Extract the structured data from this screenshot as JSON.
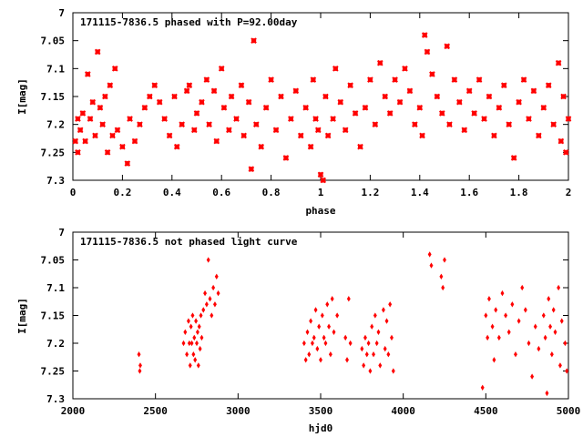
{
  "chart_data": [
    {
      "type": "scatter",
      "title": "171115-7836.5 phased with P=92.00day",
      "xlabel": "phase",
      "ylabel": "I[mag]",
      "xlim": [
        0,
        2
      ],
      "ylim": [
        7.3,
        7
      ],
      "y_inverted": true,
      "xticks": [
        "0",
        "0.2",
        "0.4",
        "0.6",
        "0.8",
        "1",
        "1.2",
        "1.4",
        "1.6",
        "1.8",
        "2"
      ],
      "xtick_values": [
        0,
        0.2,
        0.4,
        0.6,
        0.8,
        1.0,
        1.2,
        1.4,
        1.6,
        1.8,
        2.0
      ],
      "yticks": [
        "7",
        "7.05",
        "7.1",
        "7.15",
        "7.2",
        "7.25",
        "7.3"
      ],
      "ytick_values": [
        7,
        7.05,
        7.1,
        7.15,
        7.2,
        7.25,
        7.3
      ],
      "marker_color": "#ff0000",
      "series": [
        {
          "points": [
            [
              0.01,
              7.23
            ],
            [
              0.02,
              7.19
            ],
            [
              0.02,
              7.25
            ],
            [
              0.03,
              7.21
            ],
            [
              0.04,
              7.18
            ],
            [
              0.05,
              7.23
            ],
            [
              0.06,
              7.11
            ],
            [
              0.07,
              7.19
            ],
            [
              0.08,
              7.16
            ],
            [
              0.09,
              7.22
            ],
            [
              0.1,
              7.07
            ],
            [
              0.11,
              7.17
            ],
            [
              0.12,
              7.2
            ],
            [
              0.13,
              7.15
            ],
            [
              0.14,
              7.25
            ],
            [
              0.15,
              7.13
            ],
            [
              0.16,
              7.22
            ],
            [
              0.17,
              7.1
            ],
            [
              0.18,
              7.21
            ],
            [
              0.2,
              7.24
            ],
            [
              0.22,
              7.27
            ],
            [
              0.23,
              7.19
            ],
            [
              0.25,
              7.23
            ],
            [
              0.27,
              7.2
            ],
            [
              0.29,
              7.17
            ],
            [
              0.31,
              7.15
            ],
            [
              0.33,
              7.13
            ],
            [
              0.35,
              7.16
            ],
            [
              0.37,
              7.19
            ],
            [
              0.39,
              7.22
            ],
            [
              0.41,
              7.15
            ],
            [
              0.42,
              7.24
            ],
            [
              0.44,
              7.2
            ],
            [
              0.46,
              7.14
            ],
            [
              0.47,
              7.13
            ],
            [
              0.49,
              7.21
            ],
            [
              0.5,
              7.18
            ],
            [
              0.52,
              7.16
            ],
            [
              0.54,
              7.12
            ],
            [
              0.55,
              7.2
            ],
            [
              0.57,
              7.14
            ],
            [
              0.58,
              7.23
            ],
            [
              0.6,
              7.1
            ],
            [
              0.61,
              7.17
            ],
            [
              0.63,
              7.21
            ],
            [
              0.64,
              7.15
            ],
            [
              0.66,
              7.19
            ],
            [
              0.68,
              7.13
            ],
            [
              0.69,
              7.22
            ],
            [
              0.71,
              7.16
            ],
            [
              0.72,
              7.28
            ],
            [
              0.73,
              7.05
            ],
            [
              0.74,
              7.2
            ],
            [
              0.76,
              7.24
            ],
            [
              0.78,
              7.17
            ],
            [
              0.8,
              7.12
            ],
            [
              0.82,
              7.21
            ],
            [
              0.84,
              7.15
            ],
            [
              0.86,
              7.26
            ],
            [
              0.88,
              7.19
            ],
            [
              0.9,
              7.14
            ],
            [
              0.92,
              7.22
            ],
            [
              0.94,
              7.17
            ],
            [
              0.96,
              7.24
            ],
            [
              0.97,
              7.12
            ],
            [
              0.98,
              7.19
            ],
            [
              0.99,
              7.21
            ],
            [
              1.0,
              7.29
            ],
            [
              1.01,
              7.3
            ],
            [
              1.02,
              7.15
            ],
            [
              1.03,
              7.22
            ],
            [
              1.05,
              7.19
            ],
            [
              1.06,
              7.1
            ],
            [
              1.08,
              7.16
            ],
            [
              1.1,
              7.21
            ],
            [
              1.12,
              7.13
            ],
            [
              1.14,
              7.18
            ],
            [
              1.16,
              7.24
            ],
            [
              1.18,
              7.17
            ],
            [
              1.2,
              7.12
            ],
            [
              1.22,
              7.2
            ],
            [
              1.24,
              7.09
            ],
            [
              1.26,
              7.15
            ],
            [
              1.28,
              7.18
            ],
            [
              1.3,
              7.12
            ],
            [
              1.32,
              7.16
            ],
            [
              1.34,
              7.1
            ],
            [
              1.36,
              7.14
            ],
            [
              1.38,
              7.2
            ],
            [
              1.4,
              7.17
            ],
            [
              1.41,
              7.22
            ],
            [
              1.42,
              7.04
            ],
            [
              1.43,
              7.07
            ],
            [
              1.45,
              7.11
            ],
            [
              1.47,
              7.15
            ],
            [
              1.49,
              7.18
            ],
            [
              1.51,
              7.06
            ],
            [
              1.52,
              7.2
            ],
            [
              1.54,
              7.12
            ],
            [
              1.56,
              7.16
            ],
            [
              1.58,
              7.21
            ],
            [
              1.6,
              7.14
            ],
            [
              1.62,
              7.18
            ],
            [
              1.64,
              7.12
            ],
            [
              1.66,
              7.19
            ],
            [
              1.68,
              7.15
            ],
            [
              1.7,
              7.22
            ],
            [
              1.72,
              7.17
            ],
            [
              1.74,
              7.13
            ],
            [
              1.76,
              7.2
            ],
            [
              1.78,
              7.26
            ],
            [
              1.8,
              7.16
            ],
            [
              1.82,
              7.12
            ],
            [
              1.84,
              7.19
            ],
            [
              1.86,
              7.14
            ],
            [
              1.88,
              7.22
            ],
            [
              1.9,
              7.17
            ],
            [
              1.92,
              7.13
            ],
            [
              1.94,
              7.2
            ],
            [
              1.96,
              7.09
            ],
            [
              1.97,
              7.23
            ],
            [
              1.98,
              7.15
            ],
            [
              1.99,
              7.25
            ],
            [
              2.0,
              7.19
            ]
          ]
        }
      ]
    },
    {
      "type": "scatter",
      "title": "171115-7836.5 not phased light curve",
      "xlabel": "hjd0",
      "ylabel": "I[mag]",
      "xlim": [
        2000,
        5000
      ],
      "ylim": [
        7.3,
        7
      ],
      "y_inverted": true,
      "xticks": [
        "2000",
        "2500",
        "3000",
        "3500",
        "4000",
        "4500",
        "5000"
      ],
      "xtick_values": [
        2000,
        2500,
        3000,
        3500,
        4000,
        4500,
        5000
      ],
      "yticks": [
        "7",
        "7.05",
        "7.1",
        "7.15",
        "7.2",
        "7.25",
        "7.3"
      ],
      "ytick_values": [
        7,
        7.05,
        7.1,
        7.15,
        7.2,
        7.25,
        7.3
      ],
      "marker_color": "#ff0000",
      "series": [
        {
          "points": [
            [
              2400,
              7.22
            ],
            [
              2405,
              7.25
            ],
            [
              2408,
              7.24
            ],
            [
              2670,
              7.2
            ],
            [
              2680,
              7.18
            ],
            [
              2690,
              7.22
            ],
            [
              2700,
              7.16
            ],
            [
              2705,
              7.2
            ],
            [
              2710,
              7.24
            ],
            [
              2715,
              7.17
            ],
            [
              2720,
              7.2
            ],
            [
              2725,
              7.15
            ],
            [
              2730,
              7.22
            ],
            [
              2735,
              7.19
            ],
            [
              2740,
              7.23
            ],
            [
              2745,
              7.16
            ],
            [
              2750,
              7.2
            ],
            [
              2755,
              7.18
            ],
            [
              2760,
              7.24
            ],
            [
              2765,
              7.17
            ],
            [
              2770,
              7.21
            ],
            [
              2775,
              7.15
            ],
            [
              2780,
              7.19
            ],
            [
              2790,
              7.14
            ],
            [
              2800,
              7.11
            ],
            [
              2810,
              7.13
            ],
            [
              2820,
              7.05
            ],
            [
              2830,
              7.12
            ],
            [
              2840,
              7.15
            ],
            [
              2850,
              7.1
            ],
            [
              2860,
              7.13
            ],
            [
              2870,
              7.08
            ],
            [
              2880,
              7.11
            ],
            [
              3400,
              7.2
            ],
            [
              3410,
              7.23
            ],
            [
              3420,
              7.18
            ],
            [
              3430,
              7.22
            ],
            [
              3440,
              7.16
            ],
            [
              3450,
              7.2
            ],
            [
              3460,
              7.19
            ],
            [
              3470,
              7.14
            ],
            [
              3480,
              7.21
            ],
            [
              3490,
              7.17
            ],
            [
              3500,
              7.23
            ],
            [
              3510,
              7.15
            ],
            [
              3520,
              7.19
            ],
            [
              3530,
              7.2
            ],
            [
              3540,
              7.13
            ],
            [
              3550,
              7.17
            ],
            [
              3560,
              7.22
            ],
            [
              3570,
              7.12
            ],
            [
              3580,
              7.18
            ],
            [
              3600,
              7.15
            ],
            [
              3650,
              7.19
            ],
            [
              3660,
              7.23
            ],
            [
              3670,
              7.12
            ],
            [
              3680,
              7.2
            ],
            [
              3750,
              7.21
            ],
            [
              3760,
              7.24
            ],
            [
              3770,
              7.19
            ],
            [
              3780,
              7.22
            ],
            [
              3790,
              7.2
            ],
            [
              3800,
              7.25
            ],
            [
              3810,
              7.17
            ],
            [
              3820,
              7.22
            ],
            [
              3830,
              7.15
            ],
            [
              3840,
              7.2
            ],
            [
              3850,
              7.18
            ],
            [
              3860,
              7.24
            ],
            [
              3880,
              7.14
            ],
            [
              3890,
              7.21
            ],
            [
              3900,
              7.16
            ],
            [
              3910,
              7.22
            ],
            [
              3920,
              7.13
            ],
            [
              3930,
              7.19
            ],
            [
              3940,
              7.25
            ],
            [
              4160,
              7.04
            ],
            [
              4170,
              7.06
            ],
            [
              4230,
              7.08
            ],
            [
              4240,
              7.1
            ],
            [
              4250,
              7.05
            ],
            [
              4480,
              7.28
            ],
            [
              4500,
              7.15
            ],
            [
              4510,
              7.19
            ],
            [
              4520,
              7.12
            ],
            [
              4540,
              7.17
            ],
            [
              4550,
              7.23
            ],
            [
              4560,
              7.14
            ],
            [
              4580,
              7.19
            ],
            [
              4600,
              7.11
            ],
            [
              4620,
              7.15
            ],
            [
              4640,
              7.18
            ],
            [
              4660,
              7.13
            ],
            [
              4680,
              7.22
            ],
            [
              4700,
              7.16
            ],
            [
              4720,
              7.1
            ],
            [
              4740,
              7.14
            ],
            [
              4760,
              7.2
            ],
            [
              4780,
              7.26
            ],
            [
              4800,
              7.17
            ],
            [
              4820,
              7.21
            ],
            [
              4850,
              7.15
            ],
            [
              4860,
              7.19
            ],
            [
              4870,
              7.29
            ],
            [
              4880,
              7.12
            ],
            [
              4890,
              7.17
            ],
            [
              4900,
              7.22
            ],
            [
              4910,
              7.14
            ],
            [
              4920,
              7.18
            ],
            [
              4940,
              7.1
            ],
            [
              4950,
              7.24
            ],
            [
              4960,
              7.16
            ],
            [
              4980,
              7.2
            ],
            [
              4990,
              7.25
            ]
          ]
        }
      ]
    }
  ]
}
